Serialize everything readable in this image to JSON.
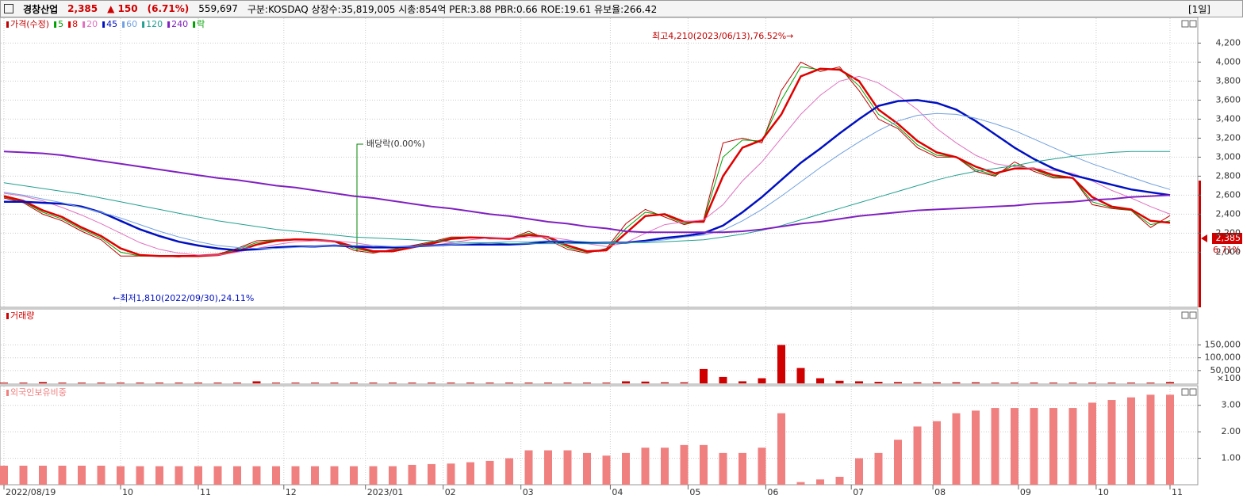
{
  "header": {
    "name": "경창산업",
    "price": "2,385",
    "change": "▲ 150",
    "change_pct": "(6.71%)",
    "volume": "559,697",
    "info": "구분:KOSDAQ 상장수:35,819,005 시총:854억 PER:3.88 PBR:0.66 ROE:19.61 유보율:266.42",
    "period": "[1일]"
  },
  "chart_data": [
    {
      "type": "line",
      "title": "가격(수정)",
      "xlim": [
        0,
        300
      ],
      "ylim": [
        1420,
        4370
      ],
      "x": [
        0,
        5,
        10,
        15,
        20,
        25,
        30,
        35,
        40,
        45,
        50,
        55,
        60,
        65,
        70,
        75,
        80,
        85,
        90,
        95,
        100,
        105,
        110,
        115,
        120,
        125,
        130,
        135,
        140,
        145,
        150,
        155,
        160,
        165,
        170,
        175,
        180,
        185,
        190,
        195,
        200,
        205,
        210,
        215,
        220,
        225,
        230,
        235,
        240,
        245,
        250,
        255,
        260,
        265,
        270,
        275,
        280,
        285,
        290,
        295,
        300
      ],
      "yticks": [
        {
          "value": 2000,
          "label": "2,000"
        },
        {
          "value": 2200,
          "label": "2,200"
        },
        {
          "value": 2400,
          "label": "2,400"
        },
        {
          "value": 2600,
          "label": "2,600"
        },
        {
          "value": 2800,
          "label": "2,800"
        },
        {
          "value": 3000,
          "label": "3,000"
        },
        {
          "value": 3200,
          "label": "3,200"
        },
        {
          "value": 3400,
          "label": "3,400"
        },
        {
          "value": 3600,
          "label": "3,600"
        },
        {
          "value": 3800,
          "label": "3,800"
        },
        {
          "value": 4000,
          "label": "4,000"
        },
        {
          "value": 4200,
          "label": "4,200"
        }
      ],
      "grid": true,
      "series": [
        {
          "name": "가격(수정)",
          "color": "#c00000",
          "width": 1,
          "values": [
            2570,
            2520,
            2400,
            2330,
            2220,
            2130,
            1960,
            1960,
            1960,
            1950,
            1970,
            1980,
            2040,
            2120,
            2130,
            2140,
            2120,
            2110,
            2020,
            1990,
            2030,
            2070,
            2110,
            2160,
            2160,
            2140,
            2140,
            2220,
            2130,
            2030,
            1990,
            2040,
            2300,
            2450,
            2370,
            2290,
            2340,
            3150,
            3200,
            3150,
            3700,
            4000,
            3900,
            3950,
            3700,
            3400,
            3300,
            3100,
            3000,
            3000,
            2850,
            2800,
            2950,
            2850,
            2780,
            2780,
            2500,
            2460,
            2440,
            2260,
            2385
          ]
        },
        {
          "name": "5",
          "color": "#00a000",
          "width": 1,
          "values": [
            2580,
            2530,
            2420,
            2350,
            2240,
            2150,
            2000,
            1960,
            1960,
            1955,
            1965,
            1975,
            2030,
            2100,
            2130,
            2135,
            2125,
            2110,
            2040,
            2000,
            2020,
            2060,
            2100,
            2150,
            2160,
            2145,
            2140,
            2200,
            2150,
            2050,
            2000,
            2030,
            2250,
            2420,
            2390,
            2300,
            2330,
            3000,
            3180,
            3170,
            3600,
            3950,
            3920,
            3930,
            3750,
            3450,
            3320,
            3130,
            3020,
            3000,
            2870,
            2810,
            2920,
            2870,
            2790,
            2780,
            2530,
            2470,
            2440,
            2290,
            2330
          ]
        },
        {
          "name": "8",
          "color": "#e00000",
          "width": 2.5,
          "values": [
            2590,
            2540,
            2440,
            2370,
            2260,
            2170,
            2040,
            1970,
            1960,
            1960,
            1960,
            1970,
            2010,
            2080,
            2120,
            2135,
            2130,
            2115,
            2060,
            2010,
            2010,
            2050,
            2090,
            2140,
            2155,
            2150,
            2140,
            2180,
            2160,
            2070,
            2010,
            2020,
            2200,
            2380,
            2400,
            2320,
            2320,
            2800,
            3100,
            3180,
            3450,
            3850,
            3930,
            3920,
            3800,
            3500,
            3350,
            3170,
            3050,
            3000,
            2900,
            2830,
            2880,
            2880,
            2810,
            2780,
            2580,
            2480,
            2450,
            2330,
            2310
          ]
        },
        {
          "name": "20",
          "color": "#e070c0",
          "width": 1,
          "values": [
            2620,
            2590,
            2540,
            2470,
            2390,
            2300,
            2200,
            2100,
            2030,
            1990,
            1970,
            1970,
            2000,
            2040,
            2080,
            2110,
            2120,
            2120,
            2100,
            2070,
            2050,
            2050,
            2070,
            2100,
            2130,
            2150,
            2150,
            2160,
            2160,
            2130,
            2090,
            2060,
            2100,
            2200,
            2290,
            2320,
            2340,
            2500,
            2750,
            2950,
            3200,
            3450,
            3650,
            3800,
            3850,
            3780,
            3650,
            3500,
            3300,
            3150,
            3020,
            2930,
            2900,
            2880,
            2860,
            2830,
            2750,
            2650,
            2570,
            2480,
            2400
          ]
        },
        {
          "name": "45",
          "color": "#0010c0",
          "width": 2.5,
          "values": [
            2530,
            2530,
            2520,
            2510,
            2480,
            2420,
            2330,
            2240,
            2170,
            2110,
            2070,
            2040,
            2020,
            2030,
            2050,
            2060,
            2060,
            2070,
            2060,
            2050,
            2050,
            2060,
            2070,
            2080,
            2080,
            2080,
            2080,
            2090,
            2110,
            2110,
            2100,
            2100,
            2100,
            2120,
            2150,
            2170,
            2200,
            2280,
            2420,
            2580,
            2760,
            2940,
            3090,
            3250,
            3400,
            3540,
            3590,
            3600,
            3570,
            3500,
            3380,
            3240,
            3100,
            2980,
            2880,
            2810,
            2760,
            2710,
            2660,
            2630,
            2600
          ]
        },
        {
          "name": "60",
          "color": "#70a0e0",
          "width": 1,
          "values": [
            2630,
            2600,
            2560,
            2520,
            2470,
            2420,
            2360,
            2290,
            2220,
            2160,
            2110,
            2070,
            2050,
            2040,
            2040,
            2050,
            2060,
            2070,
            2070,
            2070,
            2060,
            2060,
            2070,
            2080,
            2090,
            2100,
            2110,
            2110,
            2120,
            2120,
            2110,
            2100,
            2100,
            2110,
            2130,
            2160,
            2180,
            2230,
            2330,
            2450,
            2590,
            2740,
            2890,
            3030,
            3160,
            3280,
            3380,
            3440,
            3460,
            3450,
            3410,
            3350,
            3280,
            3190,
            3100,
            3010,
            2930,
            2860,
            2790,
            2720,
            2660
          ]
        },
        {
          "name": "120",
          "color": "#20a090",
          "width": 1,
          "values": [
            2730,
            2700,
            2670,
            2640,
            2610,
            2570,
            2530,
            2490,
            2450,
            2410,
            2370,
            2330,
            2300,
            2270,
            2240,
            2220,
            2200,
            2180,
            2160,
            2150,
            2140,
            2130,
            2120,
            2110,
            2100,
            2100,
            2090,
            2090,
            2090,
            2090,
            2090,
            2090,
            2100,
            2100,
            2110,
            2120,
            2130,
            2160,
            2190,
            2230,
            2280,
            2340,
            2400,
            2460,
            2520,
            2580,
            2640,
            2700,
            2760,
            2810,
            2850,
            2880,
            2910,
            2950,
            2980,
            3010,
            3030,
            3050,
            3060,
            3060,
            3060
          ]
        },
        {
          "name": "240",
          "color": "#8020c0",
          "width": 2,
          "values": [
            3060,
            3050,
            3040,
            3020,
            2990,
            2960,
            2930,
            2900,
            2870,
            2840,
            2810,
            2780,
            2760,
            2730,
            2700,
            2680,
            2650,
            2620,
            2590,
            2570,
            2540,
            2510,
            2480,
            2460,
            2430,
            2400,
            2380,
            2350,
            2320,
            2300,
            2270,
            2250,
            2220,
            2210,
            2210,
            2210,
            2210,
            2210,
            2220,
            2240,
            2270,
            2300,
            2320,
            2350,
            2380,
            2400,
            2420,
            2440,
            2450,
            2460,
            2470,
            2480,
            2490,
            2510,
            2520,
            2530,
            2550,
            2560,
            2580,
            2590,
            2600
          ]
        }
      ],
      "legend_extra": {
        "name": "락",
        "color": "#00a000"
      },
      "annotations": {
        "high": "최고4,210(2023/06/13),76.52%→",
        "low": "←최저1,810(2022/09/30),24.11%",
        "dividend": "배당락(0.00%)"
      },
      "last_label": "2,385",
      "last_change": "6.71%"
    },
    {
      "type": "bar",
      "title": "거래량",
      "color": "#d00000",
      "xlim": [
        0,
        300
      ],
      "ylim": [
        0,
        260000
      ],
      "x": [
        0,
        5,
        10,
        15,
        20,
        25,
        30,
        35,
        40,
        45,
        50,
        55,
        60,
        65,
        70,
        75,
        80,
        85,
        90,
        95,
        100,
        105,
        110,
        115,
        120,
        125,
        130,
        135,
        140,
        145,
        150,
        155,
        160,
        165,
        170,
        175,
        180,
        185,
        190,
        195,
        200,
        205,
        210,
        215,
        220,
        225,
        230,
        235,
        240,
        245,
        250,
        255,
        260,
        265,
        270,
        275,
        280,
        285,
        290,
        295,
        300
      ],
      "values": [
        3000,
        3000,
        5000,
        3000,
        3000,
        3000,
        3000,
        3000,
        3000,
        3000,
        3000,
        3000,
        3000,
        8000,
        3000,
        3000,
        3000,
        3000,
        3000,
        3000,
        3000,
        3000,
        3000,
        3000,
        3000,
        3000,
        3000,
        3000,
        3000,
        3000,
        3000,
        3000,
        8000,
        7000,
        4000,
        4000,
        56000,
        25000,
        8000,
        20000,
        150000,
        60000,
        20000,
        10000,
        8000,
        6000,
        5000,
        4000,
        4000,
        4000,
        4000,
        3000,
        3000,
        3000,
        3000,
        3000,
        3000,
        3000,
        3000,
        3000,
        5000
      ],
      "yticks": [
        {
          "value": 50000,
          "label": "50,000"
        },
        {
          "value": 100000,
          "label": "100,000"
        },
        {
          "value": 150000,
          "label": "150,000"
        }
      ],
      "unit": "×100",
      "grid": true
    },
    {
      "type": "bar",
      "title": "외국인보유비중",
      "color": "#f08080",
      "xlim": [
        0,
        300
      ],
      "ylim": [
        0,
        3.5
      ],
      "x": [
        0,
        5,
        10,
        15,
        20,
        25,
        30,
        35,
        40,
        45,
        50,
        55,
        60,
        65,
        70,
        75,
        80,
        85,
        90,
        95,
        100,
        105,
        110,
        115,
        120,
        125,
        130,
        135,
        140,
        145,
        150,
        155,
        160,
        165,
        170,
        175,
        180,
        185,
        190,
        195,
        200,
        205,
        210,
        215,
        220,
        225,
        230,
        235,
        240,
        245,
        250,
        255,
        260,
        265,
        270,
        275,
        280,
        285,
        290,
        295,
        300
      ],
      "values": [
        0.72,
        0.72,
        0.72,
        0.72,
        0.72,
        0.72,
        0.7,
        0.7,
        0.7,
        0.7,
        0.7,
        0.7,
        0.7,
        0.7,
        0.7,
        0.7,
        0.7,
        0.7,
        0.7,
        0.7,
        0.7,
        0.75,
        0.78,
        0.8,
        0.85,
        0.9,
        1.0,
        1.3,
        1.3,
        1.3,
        1.2,
        1.1,
        1.2,
        1.4,
        1.4,
        1.5,
        1.5,
        1.2,
        1.2,
        1.4,
        2.7,
        0.1,
        0.2,
        0.3,
        1.0,
        1.2,
        1.7,
        2.2,
        2.4,
        2.7,
        2.8,
        2.9,
        2.9,
        2.9,
        2.9,
        2.9,
        3.1,
        3.2,
        3.3,
        3.4,
        3.4
      ],
      "yticks": [
        {
          "value": 1,
          "label": "1.00"
        },
        {
          "value": 2,
          "label": "2.00"
        },
        {
          "value": 3,
          "label": "3.00"
        }
      ],
      "xticks": [
        {
          "value": 0,
          "label": "2022/08/19"
        },
        {
          "value": 30,
          "label": "10"
        },
        {
          "value": 50,
          "label": "11"
        },
        {
          "value": 72,
          "label": "12"
        },
        {
          "value": 93,
          "label": "2023/01"
        },
        {
          "value": 113,
          "label": "02"
        },
        {
          "value": 133,
          "label": "03"
        },
        {
          "value": 156,
          "label": "04"
        },
        {
          "value": 176,
          "label": "05"
        },
        {
          "value": 196,
          "label": "06"
        },
        {
          "value": 218,
          "label": "07"
        },
        {
          "value": 239,
          "label": "08"
        },
        {
          "value": 261,
          "label": "09"
        },
        {
          "value": 281,
          "label": "10"
        },
        {
          "value": 300,
          "label": "11"
        }
      ],
      "grid": true
    }
  ]
}
